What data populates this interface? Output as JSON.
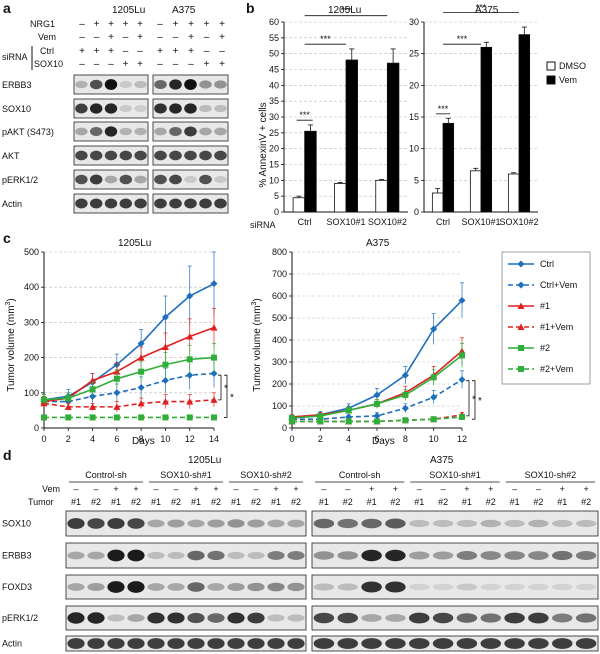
{
  "panel_letters": {
    "a": "a",
    "b": "b",
    "c": "c",
    "d": "d"
  },
  "panel_a": {
    "cell_lines": [
      "1205Lu",
      "A375"
    ],
    "conditions": {
      "nrg1": "NRG1",
      "vem": "Vem",
      "sirna": "siRNA",
      "ctrl": "Ctrl",
      "sox10": "SOX10"
    },
    "nrg1_signs": [
      "–",
      "+",
      "+",
      "+",
      "+",
      "–",
      "+",
      "+",
      "+",
      "+"
    ],
    "vem_signs": [
      "–",
      "–",
      "+",
      "–",
      "+",
      "–",
      "–",
      "+",
      "–",
      "+"
    ],
    "ctrl_signs": [
      "+",
      "+",
      "+",
      "–",
      "–",
      "+",
      "+",
      "+",
      "–",
      "–"
    ],
    "sox10_signs": [
      "–",
      "–",
      "–",
      "+",
      "+",
      "–",
      "–",
      "–",
      "+",
      "+"
    ],
    "blots": [
      "ERBB3",
      "SOX10",
      "pAKT (S473)",
      "AKT",
      "pERK1/2",
      "Actin"
    ],
    "band_intensity": {
      "ERBB3": [
        [
          0.25,
          0.7,
          1.0,
          0.15,
          0.2
        ],
        [
          0.6,
          0.9,
          1.0,
          0.4,
          0.4
        ]
      ],
      "SOX10": [
        [
          0.8,
          0.9,
          0.9,
          0.15,
          0.12
        ],
        [
          0.85,
          0.9,
          0.9,
          0.2,
          0.2
        ]
      ],
      "pAKT (S473)": [
        [
          0.3,
          0.6,
          0.9,
          0.25,
          0.25
        ],
        [
          0.3,
          0.6,
          0.8,
          0.3,
          0.3
        ]
      ],
      "AKT": [
        [
          0.75,
          0.75,
          0.75,
          0.75,
          0.75
        ],
        [
          0.75,
          0.75,
          0.75,
          0.75,
          0.75
        ]
      ],
      "pERK1/2": [
        [
          0.7,
          0.8,
          0.3,
          0.7,
          0.3
        ],
        [
          0.7,
          0.75,
          0.15,
          0.7,
          0.15
        ]
      ],
      "Actin": [
        [
          0.8,
          0.8,
          0.8,
          0.8,
          0.8
        ],
        [
          0.8,
          0.8,
          0.8,
          0.8,
          0.8
        ]
      ]
    }
  },
  "panel_b": {
    "ylabel": "% AnnexinV + cells",
    "sirna_label": "siRNA",
    "legend": [
      "DMSO",
      "Vem"
    ],
    "significance": "***"
  },
  "panel_c": {
    "ylabel": "Tumor volume (mm",
    "ylabel_sup": "3",
    "ylabel_end": ")",
    "xlabel": "Days",
    "legend": [
      "Ctrl",
      "Ctrl+Vem",
      "#1",
      "#1+Vem",
      "#2",
      "#2+Vem"
    ],
    "significance": "*"
  },
  "panel_d": {
    "cell_lines": [
      "1205Lu",
      "A375"
    ],
    "groups": [
      "Control-sh",
      "SOX10-sh#1",
      "SOX10-sh#2"
    ],
    "vem_label": "Vem",
    "tumor_label": "Tumor",
    "vem_signs": [
      "–",
      "–",
      "+",
      "+"
    ],
    "tumor_ids": [
      "#1",
      "#2",
      "#1",
      "#2"
    ],
    "blots": [
      "SOX10",
      "ERBB3",
      "FOXD3",
      "pERK1/2",
      "Actin"
    ],
    "band_intensity": {
      "SOX10": [
        [
          0.8,
          0.75,
          0.8,
          0.75,
          0.3,
          0.35,
          0.3,
          0.35,
          0.4,
          0.35,
          0.3,
          0.3
        ],
        [
          0.6,
          0.55,
          0.6,
          0.65,
          0.2,
          0.2,
          0.2,
          0.25,
          0.2,
          0.25,
          0.2,
          0.2
        ]
      ],
      "ERBB3": [
        [
          0.3,
          0.3,
          0.95,
          0.95,
          0.2,
          0.2,
          0.6,
          0.55,
          0.2,
          0.2,
          0.5,
          0.5
        ],
        [
          0.4,
          0.4,
          0.9,
          0.9,
          0.35,
          0.35,
          0.5,
          0.45,
          0.45,
          0.45,
          0.55,
          0.5
        ]
      ],
      "FOXD3": [
        [
          0.3,
          0.35,
          0.95,
          0.95,
          0.3,
          0.3,
          0.6,
          0.3,
          0.35,
          0.4,
          0.45,
          0.4
        ],
        [
          0.2,
          0.2,
          0.85,
          0.85,
          0.1,
          0.1,
          0.15,
          0.1,
          0.1,
          0.1,
          0.1,
          0.1
        ]
      ],
      "pERK1/2": [
        [
          0.9,
          0.9,
          0.2,
          0.3,
          0.85,
          0.85,
          0.7,
          0.6,
          0.85,
          0.8,
          0.2,
          0.2
        ],
        [
          0.75,
          0.75,
          0.3,
          0.3,
          0.8,
          0.75,
          0.6,
          0.55,
          0.8,
          0.8,
          0.5,
          0.55
        ]
      ],
      "Actin": [
        [
          0.8,
          0.8,
          0.8,
          0.8,
          0.8,
          0.8,
          0.8,
          0.8,
          0.8,
          0.8,
          0.8,
          0.8
        ],
        [
          0.8,
          0.8,
          0.8,
          0.8,
          0.8,
          0.8,
          0.8,
          0.8,
          0.8,
          0.8,
          0.8,
          0.8
        ]
      ]
    }
  },
  "colors": {
    "ctrl": "#1f6fbf",
    "sh1": "#e02020",
    "sh2": "#2fae3a",
    "bar_dmso": "#ffffff",
    "bar_vem": "#000000",
    "blot_bg": "#e8e8e8",
    "band": "#111111"
  },
  "chart_data": [
    {
      "type": "bar",
      "title": "1205Lu",
      "ylabel": "% AnnexinV + cells",
      "categories": [
        "Ctrl",
        "SOX10#1",
        "SOX10#2"
      ],
      "ylim": [
        0,
        60
      ],
      "yticks": [
        0,
        5,
        10,
        15,
        20,
        25,
        30,
        35,
        40,
        45,
        50,
        55,
        60
      ],
      "grid": true,
      "series": [
        {
          "name": "DMSO",
          "values": [
            4.5,
            9,
            10
          ],
          "errors": [
            0.5,
            0.3,
            0.3
          ]
        },
        {
          "name": "Vem",
          "values": [
            25.5,
            48,
            47
          ],
          "errors": [
            2,
            3.5,
            4.5
          ]
        }
      ]
    },
    {
      "type": "bar",
      "title": "A375",
      "categories": [
        "Ctrl",
        "SOX10#1",
        "SOX10#2"
      ],
      "ylim": [
        0,
        30
      ],
      "yticks": [
        0,
        5,
        10,
        15,
        20,
        25,
        30
      ],
      "grid": true,
      "legend_position": "top-right",
      "series": [
        {
          "name": "DMSO",
          "values": [
            3,
            6.5,
            6
          ],
          "errors": [
            0.7,
            0.4,
            0.2
          ]
        },
        {
          "name": "Vem",
          "values": [
            14,
            26,
            28
          ],
          "errors": [
            0.8,
            0.8,
            1.2
          ]
        }
      ]
    },
    {
      "type": "line",
      "title": "1205Lu",
      "xlabel": "Days",
      "ylabel": "Tumor volume (mm3)",
      "x": [
        0,
        2,
        4,
        6,
        8,
        10,
        12,
        14
      ],
      "xticks": [
        0,
        2,
        4,
        6,
        8,
        10,
        12,
        14
      ],
      "xlim": [
        0,
        14
      ],
      "ylim": [
        0,
        500
      ],
      "yticks": [
        0,
        100,
        200,
        300,
        400,
        500
      ],
      "grid": true,
      "series": [
        {
          "name": "Ctrl",
          "values": [
            80,
            90,
            130,
            180,
            240,
            315,
            375,
            410
          ],
          "errors": [
            15,
            20,
            25,
            30,
            40,
            60,
            85,
            90
          ]
        },
        {
          "name": "Ctrl+Vem",
          "values": [
            75,
            75,
            90,
            100,
            115,
            135,
            150,
            155
          ],
          "errors": [
            15,
            15,
            20,
            25,
            30,
            35,
            40,
            40
          ]
        },
        {
          "name": "#1",
          "values": [
            75,
            85,
            135,
            160,
            200,
            230,
            260,
            285
          ],
          "errors": [
            15,
            15,
            20,
            25,
            30,
            40,
            50,
            55
          ]
        },
        {
          "name": "#1+Vem",
          "values": [
            70,
            60,
            60,
            60,
            70,
            75,
            75,
            80
          ],
          "errors": [
            10,
            10,
            10,
            15,
            15,
            20,
            20,
            20
          ]
        },
        {
          "name": "#2",
          "values": [
            80,
            85,
            110,
            140,
            160,
            180,
            195,
            200
          ],
          "errors": [
            15,
            15,
            20,
            25,
            30,
            35,
            40,
            40
          ]
        },
        {
          "name": "#2+Vem",
          "values": [
            30,
            30,
            30,
            30,
            30,
            30,
            30,
            30
          ],
          "errors": [
            5,
            5,
            5,
            5,
            5,
            5,
            5,
            5
          ]
        }
      ]
    },
    {
      "type": "line",
      "title": "A375",
      "xlabel": "Days",
      "ylabel": "Tumor volume (mm3)",
      "x": [
        0,
        2,
        4,
        6,
        8,
        10,
        12
      ],
      "xticks": [
        0,
        2,
        4,
        6,
        8,
        10,
        12
      ],
      "xlim": [
        0,
        12
      ],
      "ylim": [
        0,
        800
      ],
      "yticks": [
        0,
        100,
        200,
        300,
        400,
        500,
        600,
        700,
        800
      ],
      "grid": true,
      "legend_position": "right",
      "series": [
        {
          "name": "Ctrl",
          "values": [
            50,
            60,
            90,
            150,
            240,
            450,
            580
          ],
          "errors": [
            10,
            15,
            20,
            30,
            40,
            70,
            80
          ]
        },
        {
          "name": "Ctrl+Vem",
          "values": [
            40,
            40,
            50,
            55,
            90,
            140,
            220
          ],
          "errors": [
            5,
            5,
            10,
            15,
            20,
            30,
            40
          ]
        },
        {
          "name": "#1",
          "values": [
            50,
            60,
            80,
            110,
            160,
            240,
            350
          ],
          "errors": [
            10,
            10,
            15,
            20,
            30,
            40,
            60
          ]
        },
        {
          "name": "#1+Vem",
          "values": [
            30,
            30,
            30,
            30,
            35,
            40,
            60
          ],
          "errors": [
            5,
            5,
            5,
            5,
            5,
            8,
            10
          ]
        },
        {
          "name": "#2",
          "values": [
            45,
            55,
            80,
            110,
            150,
            230,
            330
          ],
          "errors": [
            10,
            10,
            15,
            20,
            25,
            35,
            55
          ]
        },
        {
          "name": "#2+Vem",
          "values": [
            30,
            30,
            30,
            30,
            35,
            40,
            50
          ],
          "errors": [
            5,
            5,
            5,
            5,
            5,
            8,
            10
          ]
        }
      ]
    }
  ]
}
